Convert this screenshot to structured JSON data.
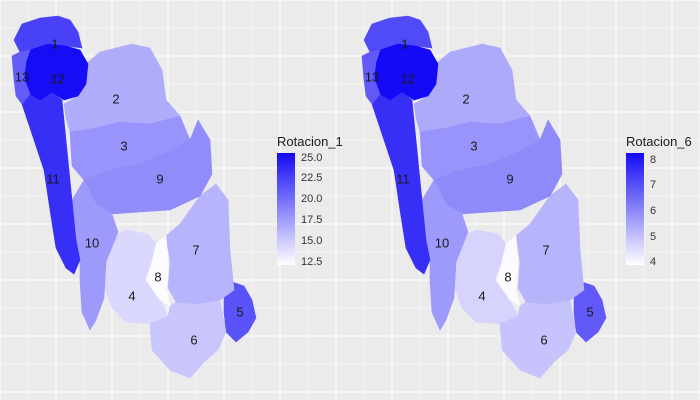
{
  "maps": [
    {
      "legend": {
        "title": "Rotacion_1",
        "ticks": [
          "25.0",
          "22.5",
          "20.0",
          "17.5",
          "15.0",
          "12.5"
        ],
        "min": 11.8,
        "max": 25.6
      },
      "regions": [
        {
          "id": "1",
          "value": 22.5
        },
        {
          "id": "2",
          "value": 16.5
        },
        {
          "id": "3",
          "value": 17.8
        },
        {
          "id": "4",
          "value": 14.0
        },
        {
          "id": "5",
          "value": 21.5
        },
        {
          "id": "6",
          "value": 15.0
        },
        {
          "id": "7",
          "value": 16.0
        },
        {
          "id": "8",
          "value": 12.0
        },
        {
          "id": "9",
          "value": 18.3
        },
        {
          "id": "10",
          "value": 17.5
        },
        {
          "id": "11",
          "value": 23.5
        },
        {
          "id": "12",
          "value": 25.5
        },
        {
          "id": "13",
          "value": 21.0
        }
      ]
    },
    {
      "legend": {
        "title": "Rotacion_6",
        "ticks": [
          "8",
          "7",
          "6",
          "5",
          "4"
        ],
        "min": 3.9,
        "max": 8.5
      },
      "regions": [
        {
          "id": "1",
          "value": 7.3
        },
        {
          "id": "2",
          "value": 5.5
        },
        {
          "id": "3",
          "value": 5.9
        },
        {
          "id": "4",
          "value": 4.7
        },
        {
          "id": "5",
          "value": 7.0
        },
        {
          "id": "6",
          "value": 5.0
        },
        {
          "id": "7",
          "value": 5.3
        },
        {
          "id": "8",
          "value": 4.0
        },
        {
          "id": "9",
          "value": 6.1
        },
        {
          "id": "10",
          "value": 5.8
        },
        {
          "id": "11",
          "value": 7.8
        },
        {
          "id": "12",
          "value": 8.5
        },
        {
          "id": "13",
          "value": 7.0
        }
      ]
    }
  ]
}
